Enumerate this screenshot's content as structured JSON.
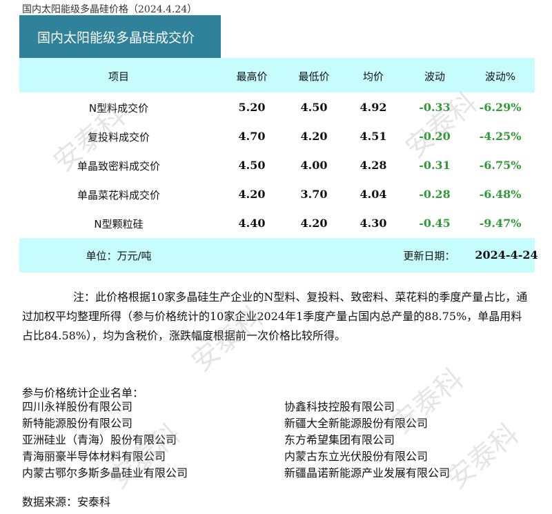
{
  "doc_title": "国内太阳能级多晶硅价格（2024.4.24）",
  "table_title": "国内太阳能级多晶硅成交价",
  "columns": [
    "项目",
    "最高价",
    "最低价",
    "均价",
    "波动",
    "波动%"
  ],
  "rows": [
    [
      "N型料成交价",
      "5.20",
      "4.50",
      "4.92",
      "-0.33",
      "-6.29%"
    ],
    [
      "复投料成交价",
      "4.70",
      "4.20",
      "4.51",
      "-0.20",
      "-4.25%"
    ],
    [
      "单晶致密料成交价",
      "4.50",
      "4.00",
      "4.28",
      "-0.31",
      "-6.75%"
    ],
    [
      "单晶菜花料成交价",
      "4.20",
      "3.70",
      "4.04",
      "-0.28",
      "-6.48%"
    ],
    [
      "N型颗粒硅",
      "4.40",
      "4.20",
      "4.30",
      "-0.45",
      "-9.47%"
    ]
  ],
  "footer": {
    "unit": "单位：万元/吨",
    "update_label": "更新日期：",
    "update_date": "2024-4-24"
  },
  "note": "注：此价格根据10家多晶硅生产企业的N型料、复投料、致密料、菜花料的季度产量占比，通过加权平均整理所得（参与价格统计的10家企业2024年1季度产量占国内总产量的88.75%，单晶用料占比84.58%），均为含税价，涨跌幅度根据前一次价格比较所得。",
  "companies_title": "参与价格统计企业名单：",
  "companies": [
    "四川永祥股份有限公司",
    "协鑫科技控股有限公司",
    "新特能源股份有限公司",
    "新疆大全新能源股份有限公司",
    "亚洲硅业（青海）股份有限公司",
    "东方希望集团有限公司",
    "青海丽豪半导体材料有限公司",
    "内蒙古东立光伏股份有限公司",
    "内蒙古鄂尔多斯多晶硅业有限公司",
    "新疆晶诺新能源产业发展有限公司"
  ],
  "source": "数据来源：安泰科",
  "watermark": "安泰科",
  "colors": {
    "title_bg": "#2f8299",
    "header_bg": "#c6fcfc",
    "negative": "#2f9b35"
  }
}
